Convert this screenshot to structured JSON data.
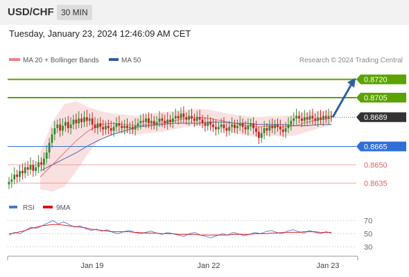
{
  "header": {
    "symbol": "USD/CHF",
    "timeframe": "30 MIN"
  },
  "timestamp": "Tuesday, January 23, 2024 12:46:09 AM CET",
  "legend": {
    "items": [
      {
        "label": "MA 20 + Bollinger Bands",
        "color": "#f08080"
      },
      {
        "label": "MA 50",
        "color": "#2f5d9e"
      }
    ],
    "credit": "Research © 2024 Trading Central"
  },
  "colors": {
    "resistance": "#5aa300",
    "pivot": "#2f6fd6",
    "support": "#e06060",
    "last": "#333333",
    "bull": "#2e8b2e",
    "bear": "#cc2222",
    "arrow": "#2f5fa0"
  },
  "chart_data": [
    {
      "type": "candlestick",
      "title": "",
      "ylim": [
        0.8625,
        0.873
      ],
      "x_tick_labels": [
        "Jan 19",
        "Jan 22",
        "Jan 23"
      ],
      "levels": [
        {
          "value": 0.872,
          "label": "0.8720",
          "kind": "resistance"
        },
        {
          "value": 0.8705,
          "label": "0.8705",
          "kind": "resistance"
        },
        {
          "value": 0.8689,
          "label": "0.8689",
          "kind": "last"
        },
        {
          "value": 0.8665,
          "label": "0.8665",
          "kind": "pivot"
        },
        {
          "value": 0.865,
          "label": "0.8650",
          "kind": "support"
        },
        {
          "value": 0.8635,
          "label": "0.8635",
          "kind": "support"
        }
      ],
      "series": [
        {
          "name": "Close",
          "values": [
            0.8636,
            0.8638,
            0.8642,
            0.864,
            0.8645,
            0.8643,
            0.8648,
            0.8646,
            0.865,
            0.8645,
            0.8648,
            0.8652,
            0.865,
            0.8655,
            0.866,
            0.8668,
            0.8675,
            0.868,
            0.8683,
            0.8678,
            0.8682,
            0.8685,
            0.868,
            0.8683,
            0.8687,
            0.8684,
            0.8688,
            0.8685,
            0.8689,
            0.8686,
            0.8688,
            0.8683,
            0.868,
            0.8684,
            0.8681,
            0.8679,
            0.8682,
            0.868,
            0.8678,
            0.8681,
            0.8684,
            0.8682,
            0.868,
            0.8682,
            0.868,
            0.8681,
            0.8679,
            0.8682,
            0.8684,
            0.8686,
            0.8685,
            0.8688,
            0.8684,
            0.8686,
            0.8683,
            0.8685,
            0.8688,
            0.8686,
            0.8684,
            0.8687,
            0.8685,
            0.8688,
            0.869,
            0.8688,
            0.8692,
            0.8689,
            0.8687,
            0.869,
            0.8688,
            0.8686,
            0.8689,
            0.8687,
            0.8684,
            0.8682,
            0.8685,
            0.8683,
            0.8681,
            0.8679,
            0.8681,
            0.8683,
            0.868,
            0.8678,
            0.8681,
            0.8683,
            0.868,
            0.8682,
            0.8684,
            0.8681,
            0.8679,
            0.8682,
            0.8684,
            0.868,
            0.8677,
            0.8672,
            0.8676,
            0.868,
            0.8678,
            0.8682,
            0.868,
            0.8683,
            0.8681,
            0.8679,
            0.8677,
            0.868,
            0.8683,
            0.8686,
            0.8688,
            0.869,
            0.8688,
            0.8686,
            0.8689,
            0.8687,
            0.869,
            0.8688,
            0.8686,
            0.8689,
            0.8687,
            0.869,
            0.8688,
            0.869,
            0.8689
          ]
        },
        {
          "name": "MA 50",
          "values": [
            0.8645,
            0.865,
            0.8655,
            0.866,
            0.8666,
            0.8671,
            0.8675,
            0.8678,
            0.8681,
            0.8682,
            0.8683,
            0.8684,
            0.8684,
            0.8684,
            0.8685,
            0.8685,
            0.8684,
            0.8684,
            0.8683,
            0.8683,
            0.8683,
            0.8682,
            0.8682,
            0.8683,
            0.8683
          ]
        },
        {
          "name": "MA 20",
          "values": [
            0.864,
            0.865,
            0.866,
            0.867,
            0.8678,
            0.8683,
            0.8684,
            0.8683,
            0.8682,
            0.8683,
            0.8684,
            0.8686,
            0.8688,
            0.8689,
            0.8688,
            0.8686,
            0.8684,
            0.8682,
            0.8681,
            0.8682,
            0.8681,
            0.8682,
            0.8685,
            0.8687,
            0.8688
          ]
        }
      ],
      "bollinger": {
        "upper": [
          0.866,
          0.8685,
          0.87,
          0.8702,
          0.8697,
          0.8694,
          0.8692,
          0.8691,
          0.869,
          0.8692,
          0.8693,
          0.8694,
          0.8695,
          0.8696,
          0.8695,
          0.8693,
          0.8691,
          0.869,
          0.8689,
          0.869,
          0.869,
          0.8691,
          0.8693,
          0.8694,
          0.8694
        ],
        "lower": [
          0.863,
          0.8628,
          0.8632,
          0.8645,
          0.866,
          0.8672,
          0.8675,
          0.8676,
          0.8675,
          0.8676,
          0.8677,
          0.8679,
          0.8681,
          0.8682,
          0.8681,
          0.8679,
          0.8676,
          0.8674,
          0.8673,
          0.8674,
          0.8673,
          0.8674,
          0.8677,
          0.868,
          0.8682
        ]
      }
    },
    {
      "type": "line",
      "title": "",
      "ylim": [
        20,
        80
      ],
      "y_tick_labels": [
        "70",
        "50",
        "30"
      ],
      "legend": [
        "RSI",
        "9MA"
      ],
      "series": [
        {
          "name": "RSI",
          "values": [
            48,
            52,
            50,
            55,
            60,
            58,
            62,
            66,
            70,
            65,
            68,
            64,
            60,
            62,
            58,
            55,
            57,
            54,
            56,
            52,
            50,
            53,
            55,
            52,
            50,
            52,
            54,
            51,
            49,
            52,
            50,
            48,
            46,
            50,
            52,
            48,
            46,
            44,
            47,
            50,
            48,
            52,
            50,
            47,
            49,
            52,
            50,
            53,
            55,
            52,
            50,
            54,
            56,
            53,
            51,
            55,
            52,
            50,
            53,
            51
          ]
        },
        {
          "name": "9MA",
          "values": [
            50,
            51,
            53,
            55,
            58,
            60,
            62,
            63,
            64,
            64,
            63,
            62,
            61,
            60,
            59,
            57,
            56,
            55,
            54,
            53,
            53,
            53,
            53,
            52,
            52,
            51,
            51,
            51,
            50,
            50,
            50,
            49,
            49,
            49,
            49,
            48,
            48,
            48,
            48,
            48,
            48,
            49,
            49,
            49,
            49,
            50,
            50,
            50,
            51,
            51,
            52,
            52,
            52,
            52,
            53,
            53,
            53,
            52,
            52,
            52
          ]
        }
      ]
    }
  ]
}
